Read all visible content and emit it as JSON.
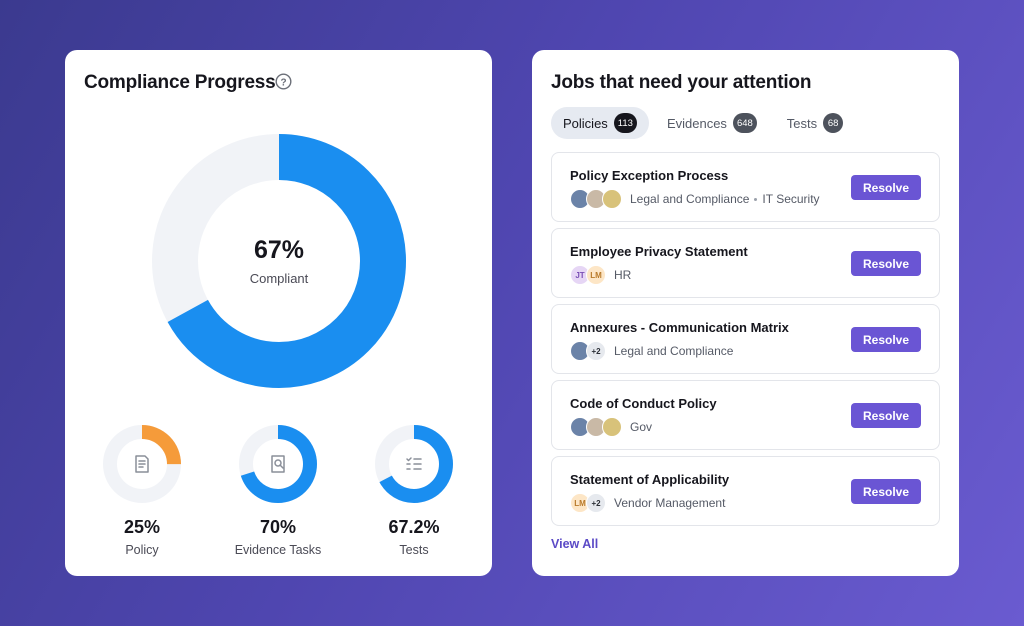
{
  "compliance": {
    "title": "Compliance Progress",
    "overall_percent_label": "67%",
    "overall_value": 0.67,
    "overall_sub": "Compliant",
    "colors": {
      "ring_fill": "#1a8ef0",
      "ring_track": "#f1f3f7",
      "policy_fill": "#f59b3a"
    },
    "stats": [
      {
        "value": "25%",
        "fraction": 0.25,
        "label": "Policy",
        "icon": "document-icon",
        "color": "#f59b3a"
      },
      {
        "value": "70%",
        "fraction": 0.7,
        "label": "Evidence Tasks",
        "icon": "search-document-icon",
        "color": "#1a8ef0"
      },
      {
        "value": "67.2%",
        "fraction": 0.672,
        "label": "Tests",
        "icon": "checklist-icon",
        "color": "#1a8ef0"
      }
    ]
  },
  "jobs": {
    "title": "Jobs that need your attention",
    "tabs": [
      {
        "label": "Policies",
        "count": "113",
        "active": true
      },
      {
        "label": "Evidences",
        "count": "648",
        "active": false
      },
      {
        "label": "Tests",
        "count": "68",
        "active": false
      }
    ],
    "items": [
      {
        "title": "Policy Exception Process",
        "owners": "Legal and Compliance",
        "owners2": "IT Security",
        "resolve": "Resolve"
      },
      {
        "title": "Employee Privacy Statement",
        "owners": "HR",
        "avatar1": "JT",
        "avatar2": "LM",
        "resolve": "Resolve"
      },
      {
        "title": "Annexures - Communication Matrix",
        "owners": "Legal and Compliance",
        "extra": "+2",
        "resolve": "Resolve"
      },
      {
        "title": "Code of Conduct Policy",
        "owners": "Gov",
        "resolve": "Resolve"
      },
      {
        "title": "Statement of Applicability",
        "owners": "Vendor Management",
        "avatar1": "LM",
        "extra": "+2",
        "resolve": "Resolve"
      }
    ],
    "view_all": "View All",
    "accent": "#6a55d4"
  }
}
